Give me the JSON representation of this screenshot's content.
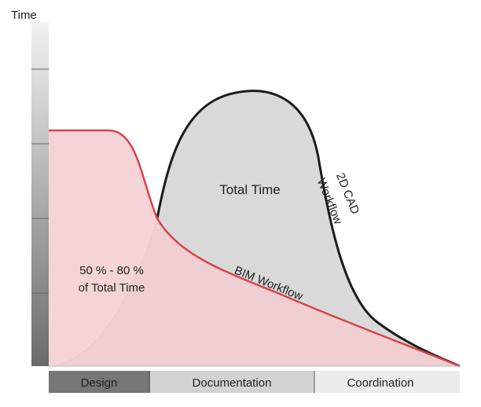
{
  "axis": {
    "y_label": "Time"
  },
  "phases": [
    {
      "label": "Design",
      "shade": "#777777",
      "text_color": "#1a1a1a"
    },
    {
      "label": "Documentation",
      "shade": "#d2d2d2",
      "text_color": "#2a2a2a"
    },
    {
      "label": "Coordination",
      "shade": "#ececec",
      "text_color": "#2a2a2a"
    }
  ],
  "curves": {
    "cad": {
      "label_line1": "2D CAD",
      "label_line2": "Workflow",
      "color": "#1c1c1c",
      "fill": "#d9d9d9"
    },
    "bim": {
      "label": "BIM Workflow",
      "color": "#d8434b",
      "fill": "#f3cdd0"
    }
  },
  "annotations": {
    "total_time": "Total Time",
    "bim_share_line1": "50 % - 80 %",
    "bim_share_line2": "of Total Time"
  }
}
